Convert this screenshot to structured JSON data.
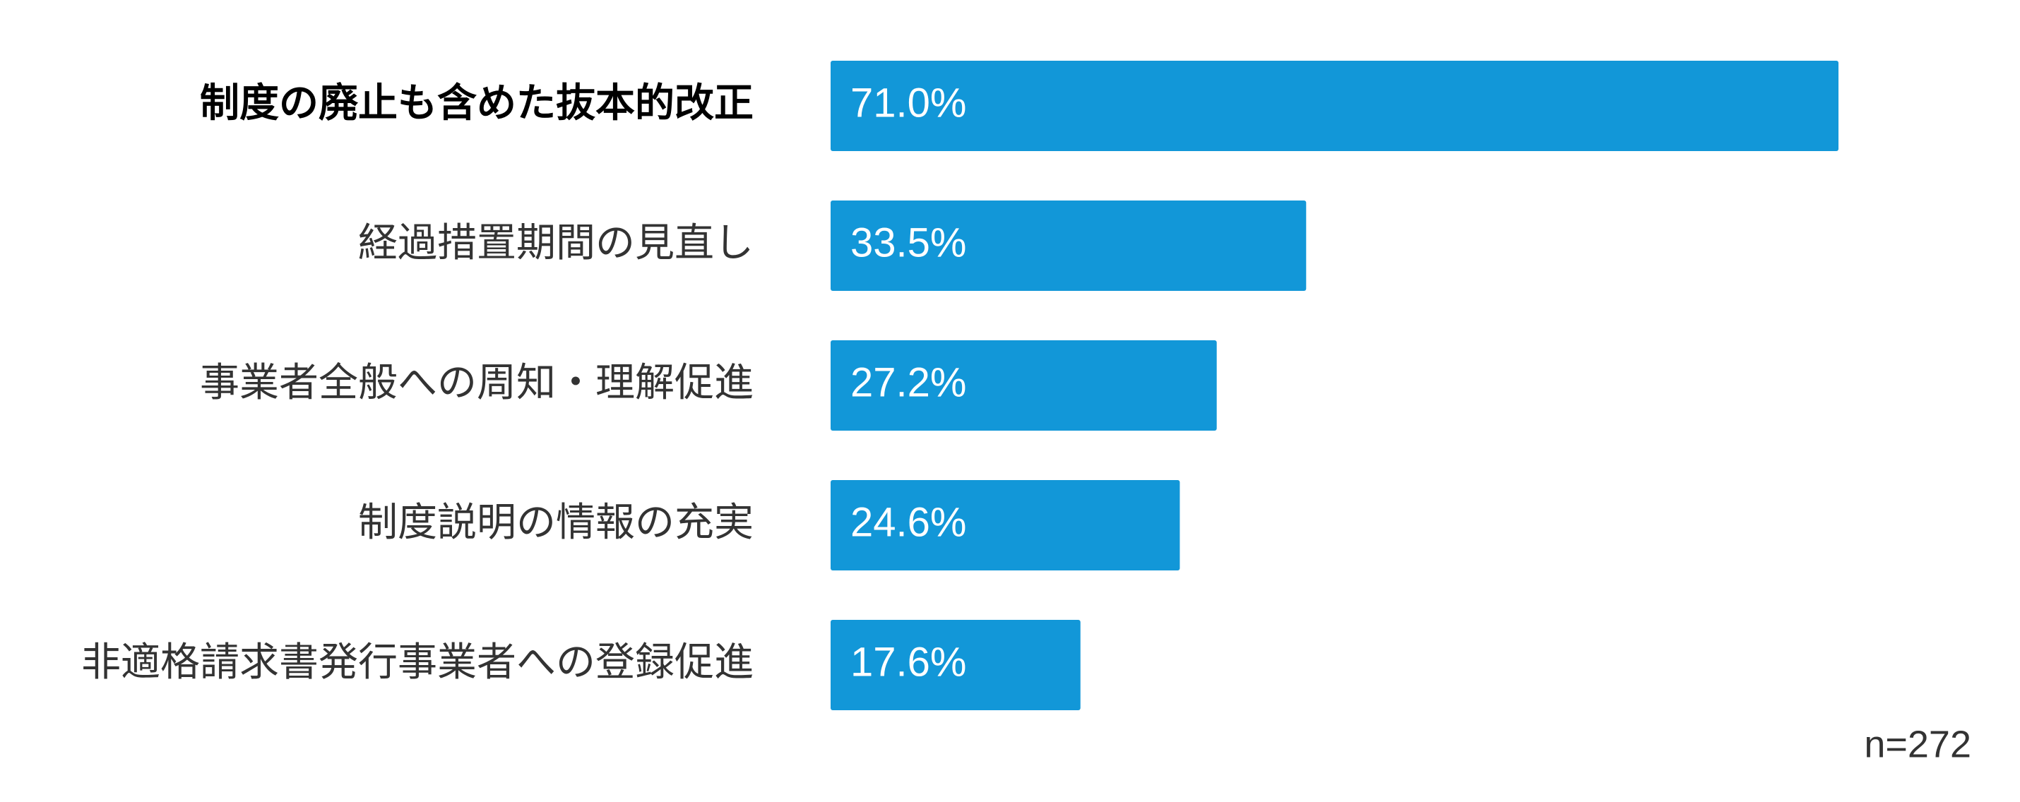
{
  "chart_data": {
    "type": "bar",
    "orientation": "horizontal",
    "categories": [
      "制度の廃止も含めた抜本的改正",
      "経過措置期間の見直し",
      "事業者全般への周知・理解促進",
      "制度説明の情報の充実",
      "非適格請求書発行事業者への登録促進"
    ],
    "values": [
      71.0,
      33.5,
      27.2,
      24.6,
      17.6
    ],
    "value_labels": [
      "71.0%",
      "33.5%",
      "27.2%",
      "24.6%",
      "17.6%"
    ],
    "color": "#1297d8",
    "note": "n=272"
  }
}
